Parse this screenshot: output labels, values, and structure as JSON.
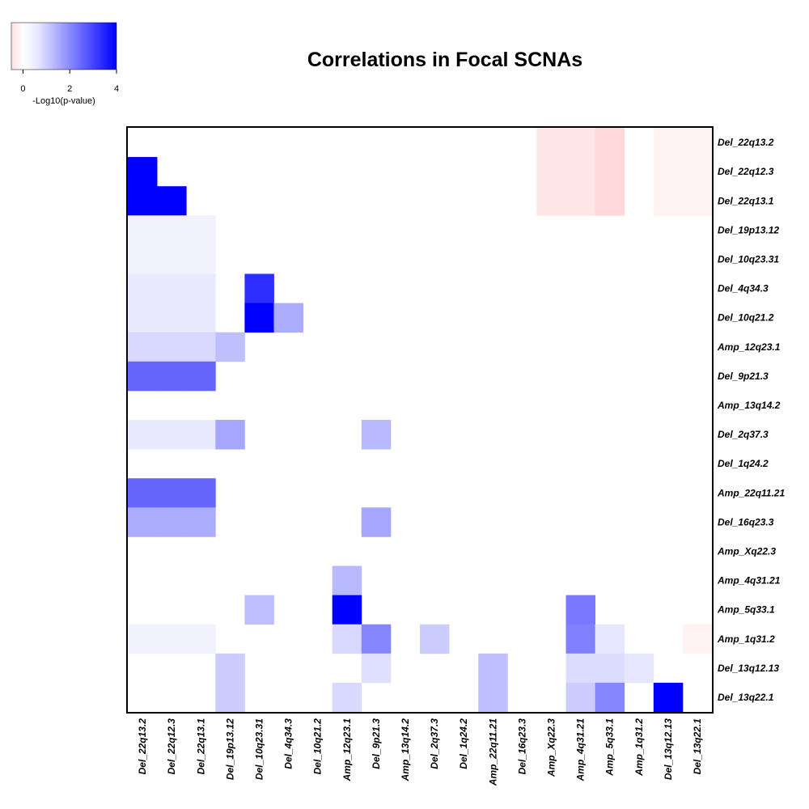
{
  "chart_data": {
    "type": "heatmap",
    "title": "Correlations in Focal SCNAs",
    "colorbar": {
      "label": "-Log10(p-value)",
      "range": [
        -0.5,
        4
      ],
      "ticks": [
        0,
        2,
        4
      ],
      "low_color": "#ff0000",
      "mid_color": "#ffffff",
      "high_color": "#0000ff"
    },
    "rows": [
      "Del_22q13.2",
      "Del_22q12.3",
      "Del_22q13.1",
      "Del_19p13.12",
      "Del_10q23.31",
      "Del_4q34.3",
      "Del_10q21.2",
      "Amp_12q23.1",
      "Del_9p21.3",
      "Amp_13q14.2",
      "Del_2q37.3",
      "Del_1q24.2",
      "Amp_22q11.21",
      "Del_16q23.3",
      "Amp_Xq22.3",
      "Amp_4q31.21",
      "Amp_5q33.1",
      "Amp_1q31.2",
      "Del_13q12.13",
      "Del_13q22.1"
    ],
    "columns": [
      "Del_22q13.2",
      "Del_22q12.3",
      "Del_22q13.1",
      "Del_19p13.12",
      "Del_10q23.31",
      "Del_4q34.3",
      "Del_10q21.2",
      "Amp_12q23.1",
      "Del_9p21.3",
      "Amp_13q14.2",
      "Del_2q37.3",
      "Del_1q24.2",
      "Amp_22q11.21",
      "Del_16q23.3",
      "Amp_Xq22.3",
      "Amp_4q31.21",
      "Amp_5q33.1",
      "Amp_1q31.2",
      "Del_13q12.13",
      "Del_13q22.1"
    ],
    "cells": [
      {
        "row": "Del_22q13.2",
        "col": "Amp_Xq22.3",
        "value": -0.1
      },
      {
        "row": "Del_22q13.2",
        "col": "Amp_4q31.21",
        "value": -0.1
      },
      {
        "row": "Del_22q13.2",
        "col": "Amp_5q33.1",
        "value": -0.15
      },
      {
        "row": "Del_22q13.2",
        "col": "Del_13q12.13",
        "value": -0.05
      },
      {
        "row": "Del_22q13.2",
        "col": "Del_13q22.1",
        "value": -0.05
      },
      {
        "row": "Del_22q12.3",
        "col": "Del_22q13.2",
        "value": 4.0
      },
      {
        "row": "Del_22q12.3",
        "col": "Amp_Xq22.3",
        "value": -0.1
      },
      {
        "row": "Del_22q12.3",
        "col": "Amp_4q31.21",
        "value": -0.1
      },
      {
        "row": "Del_22q12.3",
        "col": "Amp_5q33.1",
        "value": -0.15
      },
      {
        "row": "Del_22q12.3",
        "col": "Del_13q12.13",
        "value": -0.05
      },
      {
        "row": "Del_22q12.3",
        "col": "Del_13q22.1",
        "value": -0.05
      },
      {
        "row": "Del_22q13.1",
        "col": "Del_22q13.2",
        "value": 4.0
      },
      {
        "row": "Del_22q13.1",
        "col": "Del_22q12.3",
        "value": 4.0
      },
      {
        "row": "Del_22q13.1",
        "col": "Amp_Xq22.3",
        "value": -0.1
      },
      {
        "row": "Del_22q13.1",
        "col": "Amp_4q31.21",
        "value": -0.1
      },
      {
        "row": "Del_22q13.1",
        "col": "Amp_5q33.1",
        "value": -0.15
      },
      {
        "row": "Del_22q13.1",
        "col": "Del_13q12.13",
        "value": -0.05
      },
      {
        "row": "Del_22q13.1",
        "col": "Del_13q22.1",
        "value": -0.05
      },
      {
        "row": "Del_19p13.12",
        "col": "Del_22q13.2",
        "value": 0.2
      },
      {
        "row": "Del_19p13.12",
        "col": "Del_22q12.3",
        "value": 0.2
      },
      {
        "row": "Del_19p13.12",
        "col": "Del_22q13.1",
        "value": 0.2
      },
      {
        "row": "Del_10q23.31",
        "col": "Del_22q13.2",
        "value": 0.2
      },
      {
        "row": "Del_10q23.31",
        "col": "Del_22q12.3",
        "value": 0.2
      },
      {
        "row": "Del_10q23.31",
        "col": "Del_22q13.1",
        "value": 0.2
      },
      {
        "row": "Del_4q34.3",
        "col": "Del_22q13.2",
        "value": 0.35
      },
      {
        "row": "Del_4q34.3",
        "col": "Del_22q12.3",
        "value": 0.35
      },
      {
        "row": "Del_4q34.3",
        "col": "Del_22q13.1",
        "value": 0.35
      },
      {
        "row": "Del_4q34.3",
        "col": "Del_10q23.31",
        "value": 3.3
      },
      {
        "row": "Del_10q21.2",
        "col": "Del_22q13.2",
        "value": 0.35
      },
      {
        "row": "Del_10q21.2",
        "col": "Del_22q12.3",
        "value": 0.35
      },
      {
        "row": "Del_10q21.2",
        "col": "Del_22q13.1",
        "value": 0.35
      },
      {
        "row": "Del_10q21.2",
        "col": "Del_10q23.31",
        "value": 4.0
      },
      {
        "row": "Del_10q21.2",
        "col": "Del_4q34.3",
        "value": 1.3
      },
      {
        "row": "Amp_12q23.1",
        "col": "Del_22q13.2",
        "value": 0.6
      },
      {
        "row": "Amp_12q23.1",
        "col": "Del_22q12.3",
        "value": 0.6
      },
      {
        "row": "Amp_12q23.1",
        "col": "Del_22q13.1",
        "value": 0.6
      },
      {
        "row": "Amp_12q23.1",
        "col": "Del_19p13.12",
        "value": 1.0
      },
      {
        "row": "Del_9p21.3",
        "col": "Del_22q13.2",
        "value": 2.4
      },
      {
        "row": "Del_9p21.3",
        "col": "Del_22q12.3",
        "value": 2.4
      },
      {
        "row": "Del_9p21.3",
        "col": "Del_22q13.1",
        "value": 2.4
      },
      {
        "row": "Del_2q37.3",
        "col": "Del_22q13.2",
        "value": 0.35
      },
      {
        "row": "Del_2q37.3",
        "col": "Del_22q12.3",
        "value": 0.35
      },
      {
        "row": "Del_2q37.3",
        "col": "Del_22q13.1",
        "value": 0.35
      },
      {
        "row": "Del_2q37.3",
        "col": "Del_19p13.12",
        "value": 1.4
      },
      {
        "row": "Del_2q37.3",
        "col": "Del_9p21.3",
        "value": 1.1
      },
      {
        "row": "Amp_22q11.21",
        "col": "Del_22q13.2",
        "value": 2.4
      },
      {
        "row": "Amp_22q11.21",
        "col": "Del_22q12.3",
        "value": 2.4
      },
      {
        "row": "Amp_22q11.21",
        "col": "Del_22q13.1",
        "value": 2.4
      },
      {
        "row": "Del_16q23.3",
        "col": "Del_22q13.2",
        "value": 1.3
      },
      {
        "row": "Del_16q23.3",
        "col": "Del_22q12.3",
        "value": 1.3
      },
      {
        "row": "Del_16q23.3",
        "col": "Del_22q13.1",
        "value": 1.3
      },
      {
        "row": "Del_16q23.3",
        "col": "Del_9p21.3",
        "value": 1.4
      },
      {
        "row": "Amp_4q31.21",
        "col": "Amp_12q23.1",
        "value": 1.1
      },
      {
        "row": "Amp_5q33.1",
        "col": "Del_10q23.31",
        "value": 1.0
      },
      {
        "row": "Amp_5q33.1",
        "col": "Amp_12q23.1",
        "value": 4.0
      },
      {
        "row": "Amp_5q33.1",
        "col": "Amp_4q31.21",
        "value": 2.1
      },
      {
        "row": "Amp_1q31.2",
        "col": "Del_22q13.2",
        "value": 0.2
      },
      {
        "row": "Amp_1q31.2",
        "col": "Del_22q12.3",
        "value": 0.2
      },
      {
        "row": "Amp_1q31.2",
        "col": "Del_22q13.1",
        "value": 0.2
      },
      {
        "row": "Amp_1q31.2",
        "col": "Amp_12q23.1",
        "value": 0.6
      },
      {
        "row": "Amp_1q31.2",
        "col": "Del_9p21.3",
        "value": 1.9
      },
      {
        "row": "Amp_1q31.2",
        "col": "Del_2q37.3",
        "value": 0.8
      },
      {
        "row": "Amp_1q31.2",
        "col": "Amp_4q31.21",
        "value": 2.0
      },
      {
        "row": "Amp_1q31.2",
        "col": "Amp_5q33.1",
        "value": 0.4
      },
      {
        "row": "Amp_1q31.2",
        "col": "Del_13q22.1",
        "value": -0.05
      },
      {
        "row": "Del_13q12.13",
        "col": "Del_19p13.12",
        "value": 0.8
      },
      {
        "row": "Del_13q12.13",
        "col": "Del_9p21.3",
        "value": 0.5
      },
      {
        "row": "Del_13q12.13",
        "col": "Amp_22q11.21",
        "value": 1.0
      },
      {
        "row": "Del_13q12.13",
        "col": "Amp_4q31.21",
        "value": 0.55
      },
      {
        "row": "Del_13q12.13",
        "col": "Amp_5q33.1",
        "value": 0.55
      },
      {
        "row": "Del_13q12.13",
        "col": "Amp_1q31.2",
        "value": 0.4
      },
      {
        "row": "Del_13q22.1",
        "col": "Del_19p13.12",
        "value": 0.8
      },
      {
        "row": "Del_13q22.1",
        "col": "Amp_12q23.1",
        "value": 0.6
      },
      {
        "row": "Del_13q22.1",
        "col": "Amp_22q11.21",
        "value": 1.0
      },
      {
        "row": "Del_13q22.1",
        "col": "Amp_4q31.21",
        "value": 0.8
      },
      {
        "row": "Del_13q22.1",
        "col": "Amp_5q33.1",
        "value": 1.9
      },
      {
        "row": "Del_13q22.1",
        "col": "Del_13q12.13",
        "value": 4.0
      }
    ]
  }
}
